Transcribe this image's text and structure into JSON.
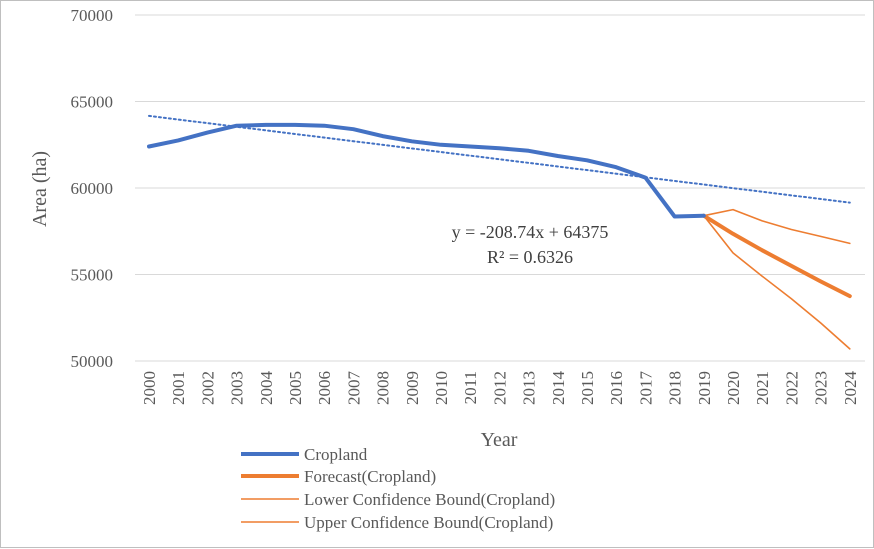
{
  "chart_data": {
    "type": "line",
    "title": "",
    "xlabel": "Year",
    "ylabel": "Area (ha)",
    "ylim": [
      50000,
      70000
    ],
    "yticks": [
      "50000",
      "55000",
      "60000",
      "65000",
      "70000"
    ],
    "categories": [
      "2000",
      "2001",
      "2002",
      "2003",
      "2004",
      "2005",
      "2006",
      "2007",
      "2008",
      "2009",
      "2010",
      "2011",
      "2012",
      "2013",
      "2014",
      "2015",
      "2016",
      "2017",
      "2018",
      "2019",
      "2020",
      "2021",
      "2022",
      "2023",
      "2024"
    ],
    "grid": true,
    "legend_position": "bottom-left",
    "series": [
      {
        "name": "Cropland",
        "color": "#4472C4",
        "style": "solid-thick",
        "values": [
          62400,
          62750,
          63200,
          63600,
          63650,
          63650,
          63600,
          63400,
          63000,
          62700,
          62500,
          62400,
          62300,
          62150,
          61850,
          61600,
          61200,
          60600,
          58350,
          58400,
          null,
          null,
          null,
          null,
          null
        ]
      },
      {
        "name": "Forecast(Cropland)",
        "color": "#ED7D31",
        "style": "solid-thick",
        "values": [
          null,
          null,
          null,
          null,
          null,
          null,
          null,
          null,
          null,
          null,
          null,
          null,
          null,
          null,
          null,
          null,
          null,
          null,
          null,
          58400,
          57350,
          56400,
          55500,
          54600,
          53750
        ]
      },
      {
        "name": "Lower Confidence Bound(Cropland)",
        "color": "#ED7D31",
        "style": "solid-thin",
        "values": [
          null,
          null,
          null,
          null,
          null,
          null,
          null,
          null,
          null,
          null,
          null,
          null,
          null,
          null,
          null,
          null,
          null,
          null,
          null,
          58400,
          56250,
          54900,
          53600,
          52200,
          50700
        ]
      },
      {
        "name": "Upper Confidence Bound(Cropland)",
        "color": "#ED7D31",
        "style": "solid-thin",
        "values": [
          null,
          null,
          null,
          null,
          null,
          null,
          null,
          null,
          null,
          null,
          null,
          null,
          null,
          null,
          null,
          null,
          null,
          null,
          null,
          58400,
          58750,
          58100,
          57600,
          57200,
          56800
        ]
      }
    ],
    "trendline": {
      "type": "linear",
      "color": "#4472C4",
      "style": "dotted",
      "slope": -208.74,
      "intercept": 64375,
      "equation": "y = -208.74x + 64375",
      "r_squared": "R² = 0.6326"
    }
  },
  "colors": {
    "gridline": "#d9d9d9",
    "text": "#595959",
    "cropland": "#4472C4",
    "forecast": "#ED7D31"
  }
}
